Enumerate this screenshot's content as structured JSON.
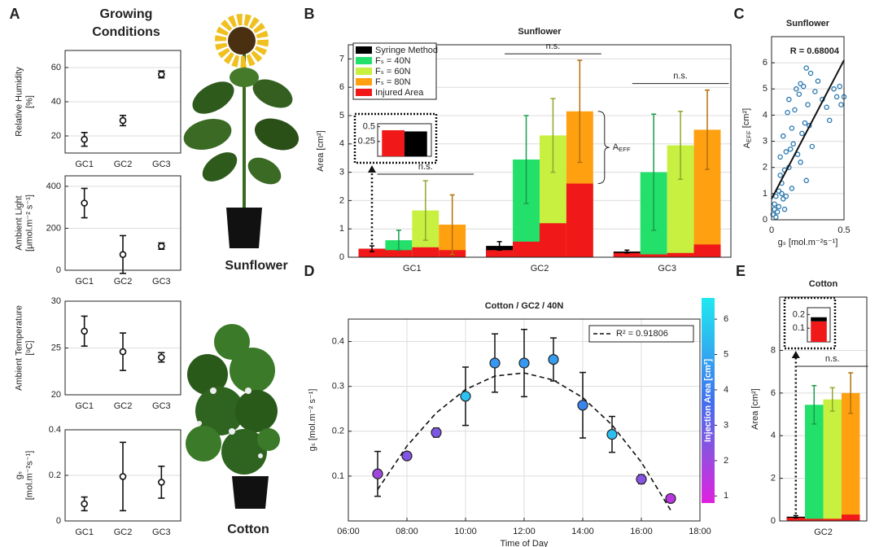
{
  "figure": {
    "panel_labels": [
      "A",
      "B",
      "C",
      "D",
      "E"
    ],
    "heading": [
      "Growing",
      "Conditions"
    ],
    "photo_captions": [
      "Sunflower",
      "Cotton"
    ]
  },
  "chart_data": [
    {
      "type": "errorpoint",
      "ylabel": [
        "Relative Humidity",
        "[%]"
      ],
      "categories": [
        "GC1",
        "GC2",
        "GC3"
      ],
      "values": [
        18,
        29,
        56
      ],
      "errors": [
        4,
        3,
        2
      ],
      "ylim": [
        10,
        70
      ],
      "yticks": [
        20,
        40,
        60
      ],
      "grid": true,
      "color": "#111111"
    },
    {
      "type": "errorpoint",
      "ylabel": [
        "Ambient Light",
        "[μmol.m⁻² s⁻¹]"
      ],
      "categories": [
        "GC1",
        "GC2",
        "GC3"
      ],
      "values": [
        320,
        75,
        115
      ],
      "errors": [
        70,
        90,
        15
      ],
      "ylim": [
        0,
        450
      ],
      "yticks": [
        0,
        200,
        400
      ],
      "grid": true,
      "color": "#111111"
    },
    {
      "type": "errorpoint",
      "ylabel": [
        "Ambient Temperature",
        "[ᵒC]"
      ],
      "categories": [
        "GC1",
        "GC2",
        "GC3"
      ],
      "values": [
        26.8,
        24.6,
        24.0
      ],
      "errors": [
        1.6,
        2.0,
        0.5
      ],
      "ylim": [
        20,
        30
      ],
      "yticks": [
        20,
        25,
        30
      ],
      "grid": true,
      "color": "#111111"
    },
    {
      "type": "errorpoint",
      "ylabel": [
        "gₛ",
        "[mol.m⁻²s⁻¹]"
      ],
      "categories": [
        "GC1",
        "GC2",
        "GC3"
      ],
      "values": [
        0.075,
        0.195,
        0.17
      ],
      "errors": [
        0.03,
        0.15,
        0.07
      ],
      "ylim": [
        0,
        0.4
      ],
      "yticks": [
        0,
        0.2,
        0.4
      ],
      "grid": true,
      "color": "#111111"
    },
    {
      "type": "bar",
      "title": "Sunflower",
      "ylabel": "Area [cm²]",
      "categories": [
        "GC1",
        "GC2",
        "GC3"
      ],
      "ylim": [
        0,
        7.5
      ],
      "yticks": [
        0,
        1,
        2,
        3,
        4,
        5,
        6,
        7
      ],
      "grid": true,
      "legend": "upper left",
      "series": [
        {
          "name": "Syringe Method",
          "color": "#000000",
          "values": [
            0.3,
            0.4,
            0.2
          ],
          "errors": [
            0.1,
            0.15,
            0.05
          ],
          "injured": [
            0.3,
            0.25,
            0.15
          ]
        },
        {
          "name": "Fₛ = 40N",
          "color": "#22e06a",
          "values": [
            0.6,
            3.45,
            3.0
          ],
          "errors": [
            0.35,
            1.55,
            2.05
          ],
          "injured": [
            0.25,
            0.55,
            0.1
          ]
        },
        {
          "name": "Fₛ = 60N",
          "color": "#c8f040",
          "values": [
            1.65,
            4.3,
            3.95
          ],
          "errors": [
            1.05,
            1.3,
            1.2
          ],
          "injured": [
            0.35,
            1.2,
            0.15
          ]
        },
        {
          "name": "Fₛ = 80N",
          "color": "#ffa010",
          "values": [
            1.15,
            5.15,
            4.5
          ],
          "errors": [
            1.05,
            1.8,
            1.4
          ],
          "injured": [
            0.25,
            2.6,
            0.45
          ]
        }
      ],
      "injured_name": "Injured Area",
      "injured_color": "#f01818",
      "annotations": [
        "n.s.",
        "n.s.",
        "n.s."
      ],
      "aeff": {
        "base": "A",
        "sub": "EFF"
      },
      "inset": {
        "values": [
          0.44,
          0.42
        ],
        "colors": [
          "#f01818",
          "#000000"
        ],
        "ylim": [
          0,
          0.55
        ],
        "yticks": [
          0.25,
          0.5
        ],
        "stacked": false
      }
    },
    {
      "type": "scatter",
      "title": "Sunflower",
      "xlabel": "gₛ  [mol.m⁻²s⁻¹]",
      "ylabel": {
        "base": "A",
        "sub": "EFF",
        "unit": " [cm²]"
      },
      "x": [
        0.01,
        0.02,
        0.03,
        0.03,
        0.04,
        0.05,
        0.05,
        0.06,
        0.07,
        0.08,
        0.08,
        0.09,
        0.1,
        0.1,
        0.11,
        0.12,
        0.12,
        0.13,
        0.14,
        0.15,
        0.16,
        0.17,
        0.18,
        0.19,
        0.2,
        0.21,
        0.22,
        0.23,
        0.24,
        0.25,
        0.26,
        0.27,
        0.28,
        0.3,
        0.32,
        0.35,
        0.38,
        0.4,
        0.43,
        0.45,
        0.47,
        0.48,
        0.5,
        0.02,
        0.06,
        0.09,
        0.14,
        0.2,
        0.24,
        0.07
      ],
      "values": [
        0.2,
        0.4,
        0.1,
        0.9,
        0.3,
        1.1,
        0.5,
        2.4,
        1.4,
        0.8,
        3.2,
        1.9,
        0.9,
        2.6,
        4.1,
        2.0,
        4.6,
        2.7,
        3.5,
        2.9,
        4.2,
        5.0,
        2.5,
        4.8,
        5.2,
        3.3,
        5.1,
        3.7,
        5.8,
        4.4,
        3.6,
        5.6,
        2.8,
        4.9,
        5.3,
        4.6,
        4.3,
        3.8,
        5.0,
        4.7,
        5.1,
        4.4,
        4.7,
        0.6,
        1.7,
        0.4,
        1.2,
        2.2,
        1.5,
        1.0
      ],
      "xlim": [
        0,
        0.5
      ],
      "ylim": [
        0,
        7
      ],
      "xticks": [
        0,
        0.5
      ],
      "yticks": [
        0,
        1,
        2,
        3,
        4,
        5,
        6
      ],
      "grid": true,
      "color": "#2878b0",
      "annotation": "R = 0.68004",
      "fit": {
        "x": [
          0,
          0.5
        ],
        "values": [
          0.8,
          6.1
        ]
      }
    },
    {
      "type": "line",
      "title": "Cotton / GC2 / 40N",
      "xlabel": "Time of Day",
      "ylabel": "gₛ  [mol.m⁻² s⁻¹]",
      "x": [
        7,
        8,
        9,
        10,
        11,
        12,
        13,
        14,
        15,
        16,
        17
      ],
      "values": [
        0.105,
        0.145,
        0.197,
        0.278,
        0.352,
        0.352,
        0.36,
        0.258,
        0.193,
        0.093,
        0.05
      ],
      "errors": [
        0.05,
        0.008,
        0.01,
        0.065,
        0.065,
        0.075,
        0.048,
        0.073,
        0.04,
        0.01,
        0.005
      ],
      "injection_area": [
        2.0,
        2.5,
        2.6,
        5.6,
        4.6,
        4.6,
        4.7,
        4.2,
        5.5,
        2.4,
        1.5
      ],
      "xlim": [
        6,
        18
      ],
      "xticks": [
        {
          "value": 6,
          "label": "06:00"
        },
        {
          "value": 8,
          "label": "08:00"
        },
        {
          "value": 10,
          "label": "10:00"
        },
        {
          "value": 12,
          "label": "12:00"
        },
        {
          "value": 14,
          "label": "14:00"
        },
        {
          "value": 16,
          "label": "16:00"
        },
        {
          "value": 18,
          "label": "18:00"
        }
      ],
      "ylim": [
        0,
        0.45
      ],
      "yticks": [
        0.1,
        0.2,
        0.3,
        0.4
      ],
      "grid": true,
      "fit": {
        "name": "R² = 0.91806",
        "x": [
          7,
          8,
          9,
          10,
          11,
          12,
          13,
          14,
          15,
          16,
          17
        ],
        "values": [
          0.07,
          0.167,
          0.241,
          0.293,
          0.323,
          0.33,
          0.314,
          0.275,
          0.214,
          0.131,
          0.024
        ]
      },
      "colorbar": {
        "label": "Injection Area [cm²]",
        "lim": [
          0.8,
          6.6
        ],
        "ticks": [
          1,
          2,
          3,
          4,
          5,
          6
        ],
        "colormap": [
          "#e020e0",
          "#9050e0",
          "#4070f0",
          "#30b0f0",
          "#20e8f0"
        ]
      }
    },
    {
      "type": "bar",
      "title": "Cotton",
      "ylabel": "Area [cm²]",
      "categories": [
        "GC2"
      ],
      "ylim": [
        0,
        10.5
      ],
      "yticks": [
        0,
        2,
        4,
        6,
        8
      ],
      "grid": true,
      "series": [
        {
          "color": "#000000",
          "values": [
            0.2
          ],
          "errors": [
            0.05
          ],
          "injured": [
            0.15
          ]
        },
        {
          "color": "#22e06a",
          "values": [
            5.45
          ],
          "errors": [
            0.9
          ],
          "injured": [
            0.1
          ]
        },
        {
          "color": "#c8f040",
          "values": [
            5.7
          ],
          "errors": [
            0.55
          ],
          "injured": [
            0.1
          ]
        },
        {
          "color": "#ffa010",
          "values": [
            6.0
          ],
          "errors": [
            0.95
          ],
          "injured": [
            0.3
          ]
        }
      ],
      "injured_color": "#f01818",
      "annotations": [
        "n.s."
      ],
      "inset": {
        "values": [
          0.15,
          0.03
        ],
        "colors": [
          "#f01818",
          "#000000"
        ],
        "ylim": [
          0,
          0.25
        ],
        "yticks": [
          0.1,
          0.2
        ],
        "stacked": true
      }
    }
  ]
}
